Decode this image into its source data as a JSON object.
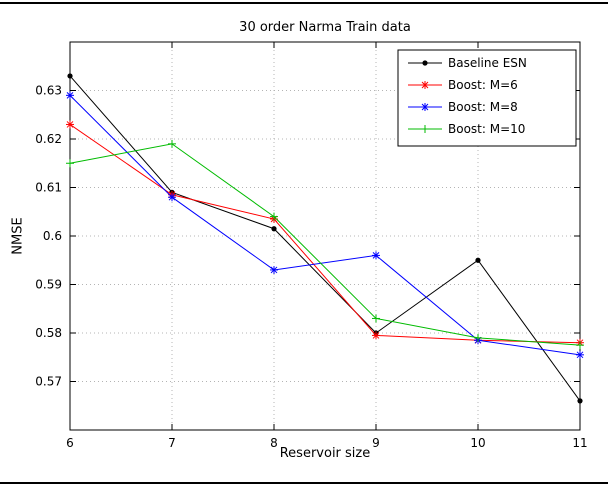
{
  "figure": {
    "title": "30 order Narma Train data",
    "xlabel": "Reservoir size",
    "ylabel": "NMSE"
  },
  "chart_data": {
    "type": "line",
    "title": "30 order Narma Train data",
    "xlabel": "Reservoir size",
    "ylabel": "NMSE",
    "grid": true,
    "legend_position": "top-right",
    "xlim": [
      6,
      11
    ],
    "ylim": [
      0.56,
      0.64
    ],
    "x": [
      6,
      7,
      8,
      9,
      10,
      11
    ],
    "x_tick_values": [
      6,
      7,
      8,
      9,
      10,
      11
    ],
    "x_tick_labels": [
      "6",
      "7",
      "8",
      "9",
      "10",
      "11"
    ],
    "y_tick_values": [
      0.57,
      0.58,
      0.59,
      0.6,
      0.61,
      0.62,
      0.63
    ],
    "y_tick_labels": [
      "0.57",
      "0.58",
      "0.59",
      "0.6",
      "0.61",
      "0.62",
      "0.63"
    ],
    "series": [
      {
        "name": "Baseline ESN",
        "color": "#000000",
        "marker": "dot",
        "values": [
          0.633,
          0.609,
          0.6015,
          0.58,
          0.595,
          0.566
        ]
      },
      {
        "name": "Boost: M=6",
        "color": "#ff0000",
        "marker": "asterisk",
        "values": [
          0.623,
          0.6085,
          0.6035,
          0.5795,
          0.5785,
          0.578
        ]
      },
      {
        "name": "Boost: M=8",
        "color": "#0000ff",
        "marker": "asterisk",
        "values": [
          0.629,
          0.608,
          0.593,
          0.596,
          0.5785,
          0.5755
        ]
      },
      {
        "name": "Boost: M=10",
        "color": "#00bb00",
        "marker": "plus",
        "values": [
          0.615,
          0.619,
          0.604,
          0.583,
          0.579,
          0.5775
        ]
      }
    ]
  }
}
